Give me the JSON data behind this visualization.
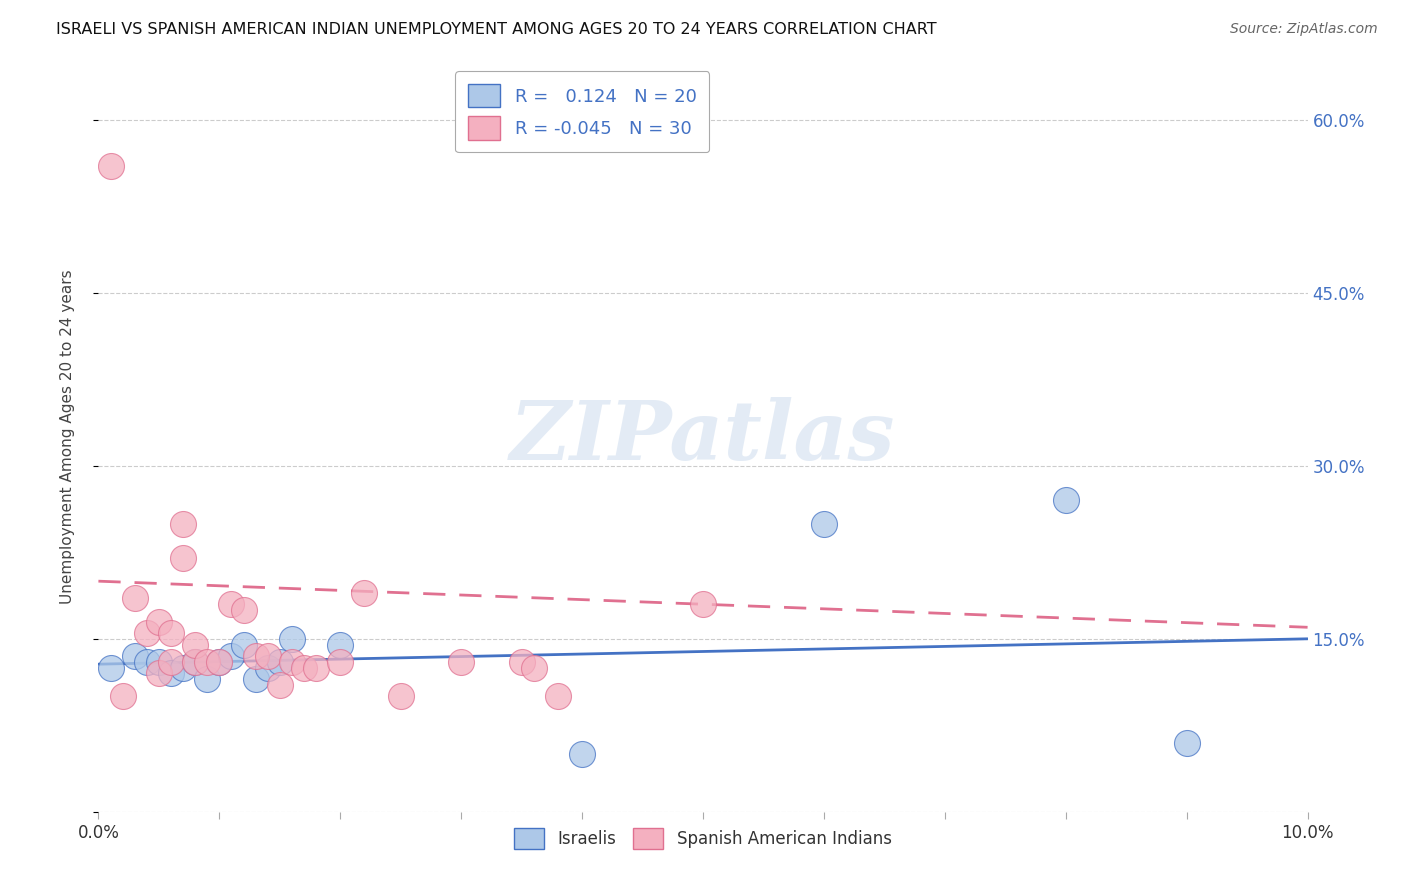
{
  "title": "ISRAELI VS SPANISH AMERICAN INDIAN UNEMPLOYMENT AMONG AGES 20 TO 24 YEARS CORRELATION CHART",
  "source": "Source: ZipAtlas.com",
  "ylabel": "Unemployment Among Ages 20 to 24 years",
  "xlim": [
    0.0,
    0.1
  ],
  "ylim": [
    0.0,
    0.65
  ],
  "x_ticks": [
    0.0,
    0.01,
    0.02,
    0.03,
    0.04,
    0.05,
    0.06,
    0.07,
    0.08,
    0.09,
    0.1
  ],
  "x_tick_labels": [
    "0.0%",
    "",
    "",
    "",
    "",
    "",
    "",
    "",
    "",
    "",
    "10.0%"
  ],
  "y_ticks": [
    0.0,
    0.15,
    0.3,
    0.45,
    0.6
  ],
  "y_tick_labels": [
    "",
    "15.0%",
    "30.0%",
    "45.0%",
    "60.0%"
  ],
  "israeli_R": 0.124,
  "israeli_N": 20,
  "spanish_R": -0.045,
  "spanish_N": 30,
  "israeli_color": "#adc8e8",
  "spanish_color": "#f4b0c0",
  "israeli_line_color": "#4472c4",
  "spanish_line_color": "#e07090",
  "watermark_text": "ZIPatlas",
  "israeli_points_x": [
    0.001,
    0.003,
    0.004,
    0.005,
    0.006,
    0.007,
    0.008,
    0.009,
    0.01,
    0.011,
    0.012,
    0.013,
    0.014,
    0.015,
    0.016,
    0.02,
    0.04,
    0.06,
    0.08,
    0.09
  ],
  "israeli_points_y": [
    0.125,
    0.135,
    0.13,
    0.13,
    0.12,
    0.125,
    0.13,
    0.115,
    0.13,
    0.135,
    0.145,
    0.115,
    0.125,
    0.13,
    0.15,
    0.145,
    0.05,
    0.25,
    0.27,
    0.06
  ],
  "spanish_points_x": [
    0.001,
    0.002,
    0.003,
    0.004,
    0.005,
    0.005,
    0.006,
    0.006,
    0.007,
    0.007,
    0.008,
    0.008,
    0.009,
    0.01,
    0.011,
    0.012,
    0.013,
    0.014,
    0.015,
    0.016,
    0.017,
    0.018,
    0.02,
    0.022,
    0.025,
    0.03,
    0.035,
    0.036,
    0.038,
    0.05
  ],
  "spanish_points_y": [
    0.56,
    0.1,
    0.185,
    0.155,
    0.12,
    0.165,
    0.13,
    0.155,
    0.25,
    0.22,
    0.13,
    0.145,
    0.13,
    0.13,
    0.18,
    0.175,
    0.135,
    0.135,
    0.11,
    0.13,
    0.125,
    0.125,
    0.13,
    0.19,
    0.1,
    0.13,
    0.13,
    0.125,
    0.1,
    0.18
  ],
  "background_color": "#ffffff",
  "grid_color": "#cccccc",
  "isr_trend_x0": 0.0,
  "isr_trend_y0": 0.128,
  "isr_trend_x1": 0.1,
  "isr_trend_y1": 0.15,
  "spa_trend_x0": 0.0,
  "spa_trend_y0": 0.2,
  "spa_trend_x1": 0.1,
  "spa_trend_y1": 0.16
}
